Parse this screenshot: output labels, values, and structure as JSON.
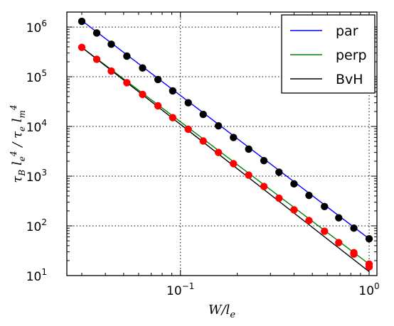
{
  "chart_data": {
    "type": "scatter",
    "xlabel": "W/l_e",
    "ylabel": "τ_B l_e^4 / τ_e l_m^4",
    "xscale": "log",
    "yscale": "log",
    "xlim": [
      0.025,
      1.1
    ],
    "ylim": [
      10,
      2000000
    ],
    "x_ticks": [
      {
        "value": 0.1,
        "base": "10",
        "exp": "−1"
      },
      {
        "value": 1,
        "base": "10",
        "exp": "0"
      }
    ],
    "y_ticks": [
      {
        "value": 10,
        "base": "10",
        "exp": "1"
      },
      {
        "value": 100,
        "base": "10",
        "exp": "2"
      },
      {
        "value": 1000,
        "base": "10",
        "exp": "3"
      },
      {
        "value": 10000,
        "base": "10",
        "exp": "4"
      },
      {
        "value": 100000,
        "base": "10",
        "exp": "5"
      },
      {
        "value": 1000000,
        "base": "10",
        "exp": "6"
      }
    ],
    "grid": true,
    "legend_position": "top-right",
    "lines": [
      {
        "name": "par",
        "color": "#0000ff",
        "x": [
          0.03,
          1.0
        ],
        "y": [
          1350000,
          55
        ]
      },
      {
        "name": "perp",
        "color": "#008000",
        "x": [
          0.03,
          1.0
        ],
        "y": [
          390000,
          17
        ]
      },
      {
        "name": "BvH",
        "color": "#000000",
        "x": [
          0.03,
          1.0
        ],
        "y": [
          390000,
          12
        ]
      }
    ],
    "point_series": [
      {
        "color": "#000000",
        "x": [
          0.03,
          0.036,
          0.043,
          0.052,
          0.063,
          0.076,
          0.091,
          0.11,
          0.132,
          0.159,
          0.191,
          0.23,
          0.277,
          0.333,
          0.4,
          0.48,
          0.58,
          0.69,
          0.83,
          1.0
        ],
        "y": [
          1300000,
          760000,
          450000,
          260000,
          150000,
          88000,
          52000,
          30000,
          17500,
          10300,
          6000,
          3500,
          2050,
          1200,
          700,
          410,
          245,
          145,
          90,
          55
        ]
      },
      {
        "color": "#ff0000",
        "x": [
          0.03,
          0.036,
          0.043,
          0.052,
          0.063,
          0.076,
          0.091,
          0.11,
          0.132,
          0.159,
          0.191,
          0.23,
          0.277,
          0.333,
          0.4,
          0.48,
          0.58,
          0.69,
          0.83,
          0.83,
          1.0,
          1.0
        ],
        "y": [
          390000,
          225000,
          130000,
          76000,
          44000,
          26000,
          15000,
          8800,
          5100,
          3000,
          1780,
          1050,
          620,
          360,
          210,
          128,
          78,
          46,
          29,
          27,
          17,
          15
        ]
      }
    ],
    "legend": [
      {
        "label": "par",
        "color": "#0000ff"
      },
      {
        "label": "perp",
        "color": "#008000"
      },
      {
        "label": "BvH",
        "color": "#000000"
      }
    ]
  }
}
